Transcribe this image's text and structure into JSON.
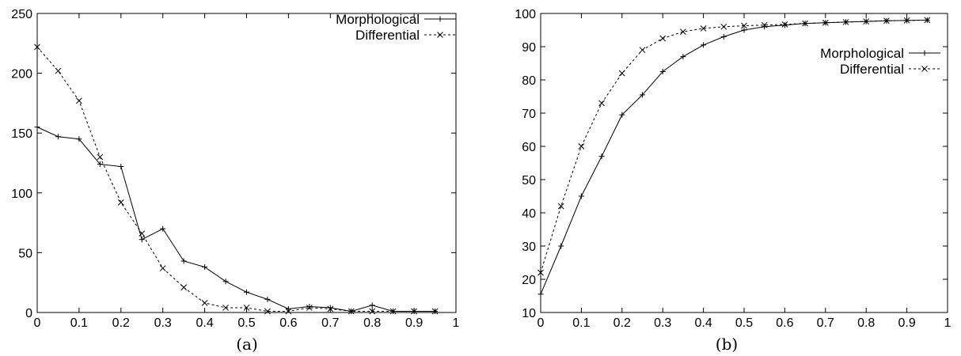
{
  "chart_data": [
    {
      "type": "line",
      "caption": "(a)",
      "x": [
        0,
        0.05,
        0.1,
        0.15,
        0.2,
        0.25,
        0.3,
        0.35,
        0.4,
        0.45,
        0.5,
        0.55,
        0.6,
        0.65,
        0.7,
        0.75,
        0.8,
        0.85,
        0.9,
        0.95
      ],
      "series": [
        {
          "name": "Morphological",
          "line": "solid",
          "marker": "plus",
          "values": [
            155,
            147,
            145,
            124,
            122,
            61,
            70,
            43,
            38,
            26,
            17,
            11,
            3,
            5,
            4,
            1,
            6,
            1,
            1,
            1
          ]
        },
        {
          "name": "Differential",
          "line": "dashed",
          "marker": "x",
          "values": [
            222,
            202,
            177,
            130,
            92,
            66,
            37,
            21,
            8,
            4,
            4,
            1,
            1,
            4,
            3,
            1,
            1,
            1,
            1,
            1
          ]
        }
      ],
      "xlim": [
        0,
        1
      ],
      "ylim": [
        0,
        250
      ],
      "xticks": [
        "0",
        "0.1",
        "0.2",
        "0.3",
        "0.4",
        "0.5",
        "0.6",
        "0.7",
        "0.8",
        "0.9",
        "1"
      ],
      "yticks": [
        "0",
        "50",
        "100",
        "150",
        "200",
        "250"
      ],
      "legend": "top-right",
      "grid": false
    },
    {
      "type": "line",
      "caption": "(b)",
      "x": [
        0,
        0.05,
        0.1,
        0.15,
        0.2,
        0.25,
        0.3,
        0.35,
        0.4,
        0.45,
        0.5,
        0.55,
        0.6,
        0.65,
        0.7,
        0.75,
        0.8,
        0.85,
        0.9,
        0.95
      ],
      "series": [
        {
          "name": "Morphological",
          "line": "solid",
          "marker": "plus",
          "values": [
            15.5,
            30,
            45,
            57,
            69.5,
            75.5,
            82.5,
            87,
            90.5,
            93,
            95,
            96,
            96.5,
            97,
            97.2,
            97.4,
            97.6,
            97.8,
            97.9,
            98
          ]
        },
        {
          "name": "Differential",
          "line": "dashed",
          "marker": "x",
          "values": [
            22,
            42,
            60,
            73,
            82,
            89,
            92.5,
            94.5,
            95.5,
            96,
            96.3,
            96.5,
            96.7,
            97,
            97.2,
            97.4,
            97.6,
            97.8,
            97.9,
            98
          ]
        }
      ],
      "xlim": [
        0,
        1
      ],
      "ylim": [
        10,
        100
      ],
      "xticks": [
        "0",
        "0.1",
        "0.2",
        "0.3",
        "0.4",
        "0.5",
        "0.6",
        "0.7",
        "0.8",
        "0.9",
        "1"
      ],
      "yticks": [
        "10",
        "20",
        "30",
        "40",
        "50",
        "60",
        "70",
        "80",
        "90",
        "100"
      ],
      "legend": "right",
      "grid": false
    }
  ]
}
